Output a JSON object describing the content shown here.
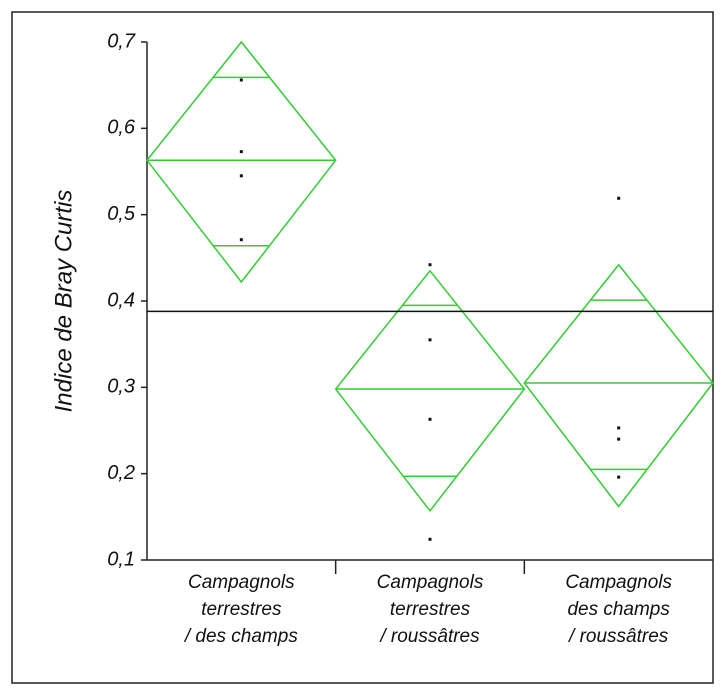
{
  "chart_data": {
    "type": "means_diamond",
    "y_label": "Indice de Bray Curtis",
    "color": "#33cc33",
    "ylim": [
      0.1,
      0.7
    ],
    "yticks": [
      {
        "value": 0.1,
        "label": "0,1"
      },
      {
        "value": 0.2,
        "label": "0,2"
      },
      {
        "value": 0.3,
        "label": "0,3"
      },
      {
        "value": 0.4,
        "label": "0,4"
      },
      {
        "value": 0.5,
        "label": "0,5"
      },
      {
        "value": 0.6,
        "label": "0,6"
      },
      {
        "value": 0.7,
        "label": "0,7"
      }
    ],
    "grand_mean": 0.388,
    "categories": [
      [
        "Campagnols",
        "terrestres",
        "/ des champs"
      ],
      [
        "Campagnols",
        "terrestres",
        "/ roussâtres"
      ],
      [
        "Campagnols",
        "des champs",
        "/ roussâtres"
      ]
    ],
    "groups": [
      {
        "mean": 0.563,
        "upper": 0.7,
        "lower": 0.422,
        "overlap_upper": 0.659,
        "overlap_lower": 0.464,
        "points": [
          0.656,
          0.573,
          0.545,
          0.471
        ]
      },
      {
        "mean": 0.298,
        "upper": 0.435,
        "lower": 0.157,
        "overlap_upper": 0.395,
        "overlap_lower": 0.197,
        "points": [
          0.442,
          0.355,
          0.263,
          0.124
        ]
      },
      {
        "mean": 0.305,
        "upper": 0.442,
        "lower": 0.162,
        "overlap_upper": 0.401,
        "overlap_lower": 0.205,
        "points": [
          0.519,
          0.253,
          0.24,
          0.196
        ]
      }
    ]
  }
}
